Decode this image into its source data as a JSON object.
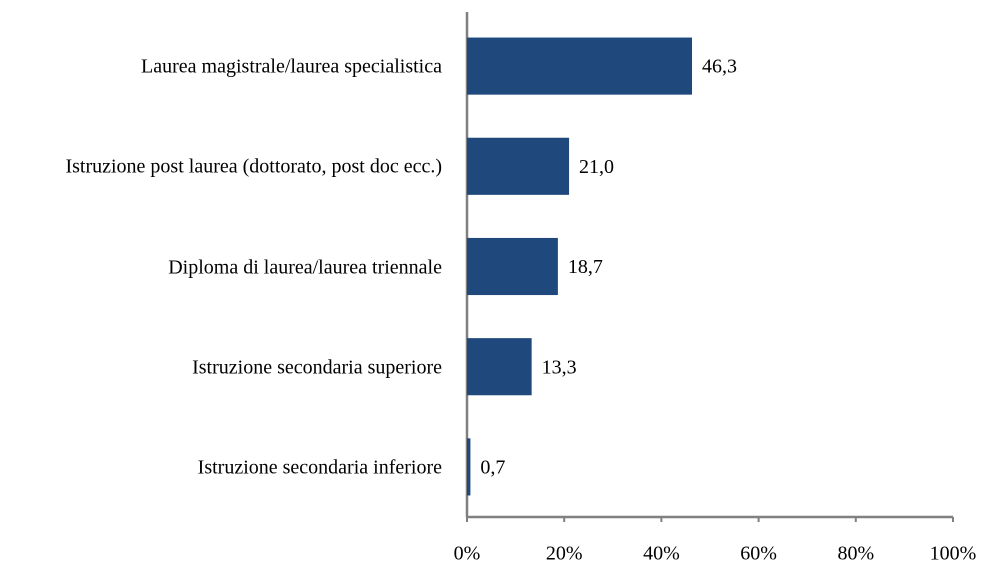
{
  "chart_data": {
    "type": "bar",
    "orientation": "horizontal",
    "categories": [
      "Laurea magistrale/laurea specialistica",
      "Istruzione post laurea (dottorato, post doc ecc.)",
      "Diploma di laurea/laurea triennale",
      "Istruzione secondaria superiore",
      "Istruzione secondaria inferiore"
    ],
    "values": [
      46.3,
      21.0,
      18.7,
      13.3,
      0.7
    ],
    "value_labels": [
      "46,3",
      "21,0",
      "18,7",
      "13,3",
      "0,7"
    ],
    "color": "#1f497d",
    "xlim": [
      0,
      100
    ],
    "xticks": [
      {
        "value": 0,
        "label": "0%"
      },
      {
        "value": 20,
        "label": "20%"
      },
      {
        "value": 40,
        "label": "40%"
      },
      {
        "value": 60,
        "label": "60%"
      },
      {
        "value": 80,
        "label": "80%"
      },
      {
        "value": 100,
        "label": "100%"
      }
    ],
    "grid": false
  }
}
